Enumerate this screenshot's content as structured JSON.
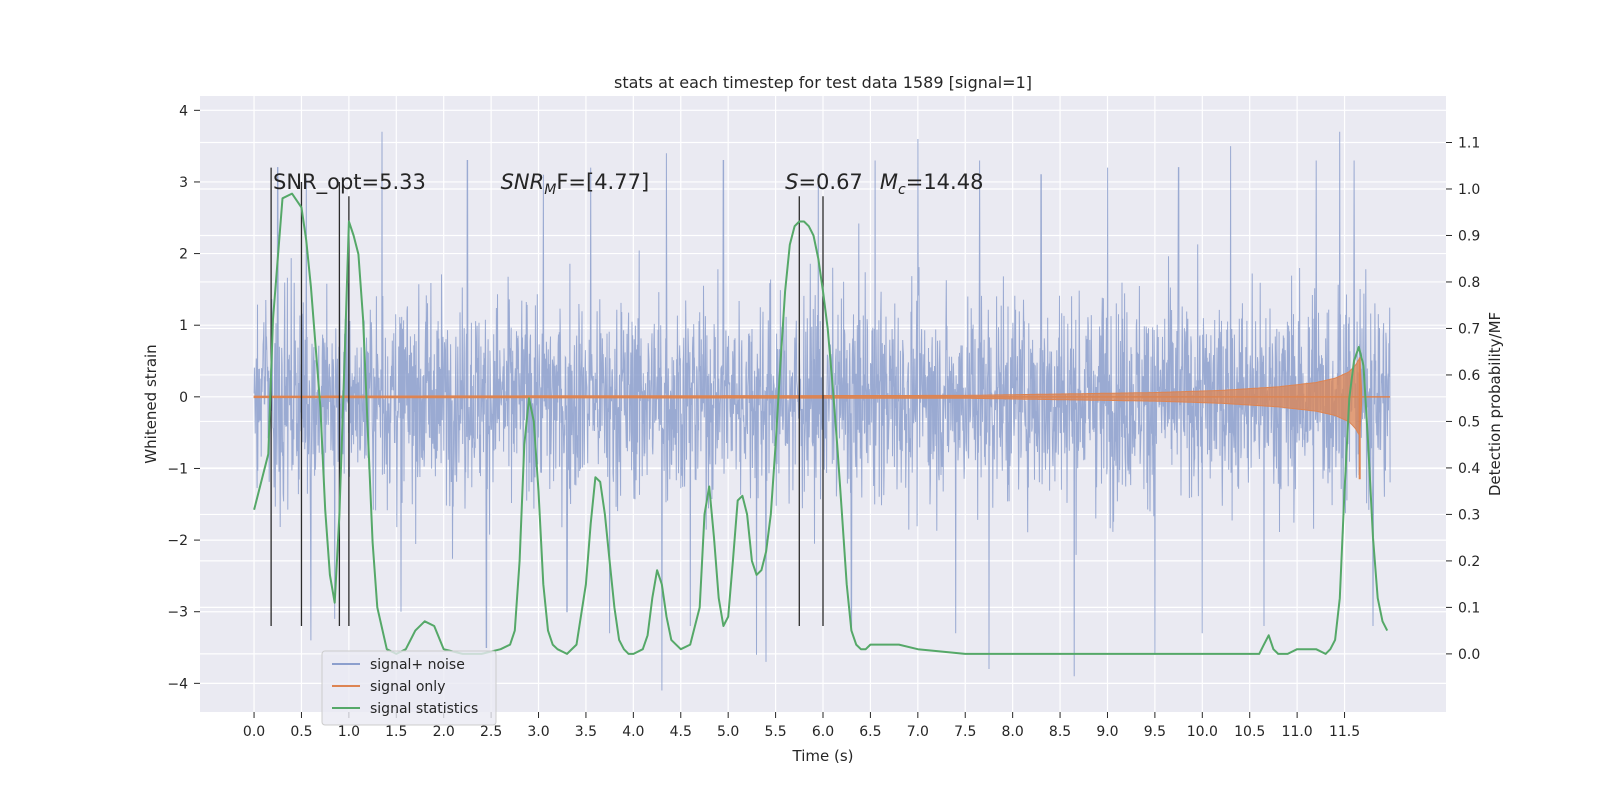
{
  "chart_data": {
    "type": "line",
    "title": "stats at each timestep for test data 1589 [signal=1]",
    "xlabel": "Time (s)",
    "ylabel": "Whitened strain",
    "y2label": "Detection probability/MF",
    "xlim": [
      -0.57,
      12.57
    ],
    "ylim": [
      -4.4,
      4.2
    ],
    "y2lim": [
      -0.125,
      1.2
    ],
    "x_ticks": [
      0.0,
      0.5,
      1.0,
      1.5,
      2.0,
      2.5,
      3.0,
      3.5,
      4.0,
      4.5,
      5.0,
      5.5,
      6.0,
      6.5,
      7.0,
      7.5,
      8.0,
      8.5,
      9.0,
      9.5,
      10.0,
      10.5,
      11.0,
      11.5
    ],
    "x_tick_labels": [
      "0.0",
      "0.5",
      "1.0",
      "1.5",
      "2.0",
      "2.5",
      "3.0",
      "3.5",
      "4.0",
      "4.5",
      "5.0",
      "5.5",
      "6.0",
      "6.5",
      "7.0",
      "7.5",
      "8.0",
      "8.5",
      "9.0",
      "9.5",
      "10.0",
      "10.5",
      "11.0",
      "11.5"
    ],
    "y_ticks": [
      -4,
      -3,
      -2,
      -1,
      0,
      1,
      2,
      3,
      4
    ],
    "y_tick_labels": [
      "−4",
      "−3",
      "−2",
      "−1",
      "0",
      "1",
      "2",
      "3",
      "4"
    ],
    "y2_ticks": [
      0.0,
      0.1,
      0.2,
      0.3,
      0.4,
      0.5,
      0.6,
      0.7,
      0.8,
      0.9,
      1.0,
      1.1
    ],
    "y2_tick_labels": [
      "0.0",
      "0.1",
      "0.2",
      "0.3",
      "0.4",
      "0.5",
      "0.6",
      "0.7",
      "0.8",
      "0.9",
      "1.0",
      "1.1"
    ],
    "grid": true,
    "legend_position": "lower-left",
    "colors": {
      "noise": "#8c9fcd",
      "signal": "#dd8452",
      "stats": "#55a868",
      "vlines": "#2b2b2b",
      "background": "#eaeaf2"
    },
    "annotations": {
      "snr_opt": "SNR_opt=5.33",
      "snr_mf_base": "SNR",
      "snr_mf_sub": "M",
      "snr_mf_rest": "F=[4.77]",
      "s_base": "S",
      "s_rest": "=0.67",
      "mc_base": "M",
      "mc_sub": "c",
      "mc_rest": "=14.48"
    },
    "annotation_x": [
      0.2,
      2.6,
      5.6,
      6.6
    ],
    "annotation_y": 3.0,
    "series": [
      {
        "name": "signal+ noise",
        "axis": "left",
        "description_values": {
          "x_start": 0.0,
          "x_end": 11.98,
          "band_low": -2.0,
          "band_high": 1.75
        },
        "peaks": [
          [
            0.25,
            3.2
          ],
          [
            0.55,
            3.05
          ],
          [
            0.6,
            -3.4
          ],
          [
            0.85,
            -3.1
          ],
          [
            1.35,
            3.7
          ],
          [
            1.55,
            -3.0
          ],
          [
            2.25,
            3.3
          ],
          [
            2.45,
            -3.5
          ],
          [
            3.05,
            3.1
          ],
          [
            3.3,
            -3.0
          ],
          [
            3.55,
            3.2
          ],
          [
            3.75,
            -3.3
          ],
          [
            4.3,
            -4.1
          ],
          [
            4.35,
            3.4
          ],
          [
            4.6,
            -3.2
          ],
          [
            4.95,
            3.3
          ],
          [
            5.3,
            -3.6
          ],
          [
            5.4,
            -3.7
          ],
          [
            5.95,
            3.1
          ],
          [
            6.3,
            -3.2
          ],
          [
            6.55,
            3.3
          ],
          [
            7.0,
            3.6
          ],
          [
            7.4,
            -3.3
          ],
          [
            7.65,
            3.3
          ],
          [
            7.75,
            -3.8
          ],
          [
            8.3,
            3.1
          ],
          [
            8.65,
            -3.9
          ],
          [
            9.0,
            3.2
          ],
          [
            9.5,
            -3.6
          ],
          [
            9.75,
            3.2
          ],
          [
            10.0,
            -3.3
          ],
          [
            10.3,
            3.5
          ],
          [
            10.65,
            -3.2
          ],
          [
            11.2,
            3.3
          ],
          [
            11.45,
            3.7
          ],
          [
            11.6,
            3.3
          ],
          [
            11.8,
            -3.2
          ]
        ]
      },
      {
        "name": "signal only",
        "axis": "left",
        "envelope": [
          [
            0.0,
            0.01
          ],
          [
            7.5,
            0.02
          ],
          [
            8.5,
            0.04
          ],
          [
            9.5,
            0.06
          ],
          [
            10.2,
            0.09
          ],
          [
            10.8,
            0.14
          ],
          [
            11.2,
            0.2
          ],
          [
            11.4,
            0.26
          ],
          [
            11.55,
            0.35
          ],
          [
            11.62,
            0.45
          ],
          [
            11.66,
            0.55
          ],
          [
            11.68,
            0.1
          ]
        ],
        "chirp_tail": [
          11.66,
          -1.15
        ]
      },
      {
        "name": "signal statistics",
        "axis": "right",
        "x": [
          0.0,
          0.15,
          0.2,
          0.3,
          0.4,
          0.5,
          0.55,
          0.6,
          0.7,
          0.75,
          0.8,
          0.85,
          0.9,
          0.95,
          1.0,
          1.05,
          1.1,
          1.15,
          1.2,
          1.25,
          1.3,
          1.4,
          1.5,
          1.6,
          1.7,
          1.8,
          1.9,
          2.0,
          2.2,
          2.4,
          2.6,
          2.7,
          2.75,
          2.8,
          2.85,
          2.9,
          2.95,
          3.0,
          3.05,
          3.1,
          3.15,
          3.2,
          3.3,
          3.4,
          3.5,
          3.55,
          3.6,
          3.65,
          3.7,
          3.75,
          3.8,
          3.85,
          3.9,
          3.95,
          4.0,
          4.1,
          4.15,
          4.2,
          4.25,
          4.3,
          4.35,
          4.4,
          4.45,
          4.5,
          4.6,
          4.7,
          4.75,
          4.8,
          4.85,
          4.9,
          4.95,
          5.0,
          5.05,
          5.1,
          5.15,
          5.2,
          5.25,
          5.3,
          5.35,
          5.4,
          5.45,
          5.5,
          5.55,
          5.6,
          5.65,
          5.7,
          5.75,
          5.8,
          5.85,
          5.9,
          5.95,
          6.0,
          6.05,
          6.1,
          6.15,
          6.2,
          6.25,
          6.3,
          6.35,
          6.4,
          6.45,
          6.5,
          6.55,
          6.6,
          6.8,
          7.0,
          7.5,
          8.0,
          9.0,
          10.0,
          10.5,
          10.6,
          10.65,
          10.7,
          10.75,
          10.8,
          10.9,
          11.0,
          11.2,
          11.3,
          11.35,
          11.4,
          11.45,
          11.5,
          11.55,
          11.6,
          11.65,
          11.7,
          11.75,
          11.8,
          11.85,
          11.9,
          11.95
        ],
        "values": [
          0.31,
          0.43,
          0.72,
          0.98,
          0.99,
          0.96,
          0.89,
          0.79,
          0.53,
          0.31,
          0.17,
          0.11,
          0.3,
          0.6,
          0.93,
          0.9,
          0.86,
          0.72,
          0.48,
          0.24,
          0.1,
          0.01,
          0.0,
          0.01,
          0.05,
          0.07,
          0.06,
          0.01,
          0.0,
          0.0,
          0.01,
          0.02,
          0.05,
          0.2,
          0.45,
          0.55,
          0.5,
          0.35,
          0.15,
          0.05,
          0.02,
          0.01,
          0.0,
          0.02,
          0.15,
          0.28,
          0.38,
          0.37,
          0.3,
          0.2,
          0.1,
          0.03,
          0.01,
          0.0,
          0.0,
          0.01,
          0.04,
          0.12,
          0.18,
          0.15,
          0.08,
          0.03,
          0.02,
          0.01,
          0.02,
          0.1,
          0.3,
          0.36,
          0.25,
          0.12,
          0.06,
          0.08,
          0.2,
          0.33,
          0.34,
          0.3,
          0.2,
          0.17,
          0.18,
          0.22,
          0.3,
          0.45,
          0.62,
          0.78,
          0.88,
          0.92,
          0.93,
          0.93,
          0.92,
          0.9,
          0.85,
          0.78,
          0.7,
          0.58,
          0.45,
          0.3,
          0.15,
          0.05,
          0.02,
          0.01,
          0.01,
          0.02,
          0.02,
          0.02,
          0.02,
          0.01,
          0.0,
          0.0,
          0.0,
          0.0,
          0.0,
          0.0,
          0.02,
          0.04,
          0.01,
          0.0,
          0.0,
          0.01,
          0.01,
          0.0,
          0.01,
          0.03,
          0.12,
          0.35,
          0.55,
          0.63,
          0.66,
          0.62,
          0.45,
          0.25,
          0.12,
          0.07,
          0.05
        ]
      }
    ],
    "vertical_lines": [
      {
        "x": 0.18,
        "y_top": 3.2,
        "y_bottom": -3.2
      },
      {
        "x": 0.5,
        "y_top": 3.0,
        "y_bottom": -3.2
      },
      {
        "x": 0.9,
        "y_top": 3.0,
        "y_bottom": -3.2
      },
      {
        "x": 1.0,
        "y_top": 2.8,
        "y_bottom": -3.2
      },
      {
        "x": 5.75,
        "y_top": 2.8,
        "y_bottom": -3.2
      },
      {
        "x": 6.0,
        "y_top": 2.8,
        "y_bottom": -3.2
      }
    ],
    "legend": {
      "items": [
        {
          "label": "signal+ noise",
          "color": "#8c9fcd"
        },
        {
          "label": "signal only",
          "color": "#dd8452"
        },
        {
          "label": "signal statistics",
          "color": "#55a868"
        }
      ]
    }
  }
}
